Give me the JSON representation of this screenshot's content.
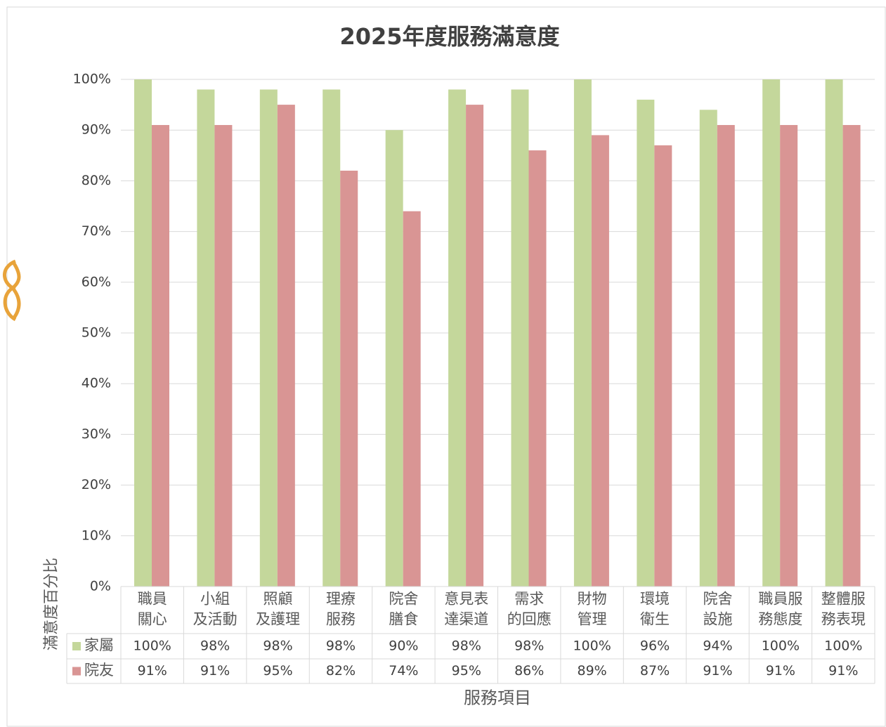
{
  "chart_data": {
    "type": "bar",
    "title": "2025年度服務滿意度",
    "y_label": "滿意度百分比",
    "x_label": "服務項目",
    "categories": [
      [
        "職員",
        "關心"
      ],
      [
        "小組",
        "及活動"
      ],
      [
        "照顧",
        "及護理"
      ],
      [
        "理療",
        "服務"
      ],
      [
        "院舍",
        "膳食"
      ],
      [
        "意見表",
        "達渠道"
      ],
      [
        "需求",
        "的回應"
      ],
      [
        "財物",
        "管理"
      ],
      [
        "環境",
        "衛生"
      ],
      [
        "院舍",
        "設施"
      ],
      [
        "職員服",
        "務態度"
      ],
      [
        "整體服",
        "務表現"
      ]
    ],
    "series": [
      {
        "name": "家屬",
        "color": "#c4d79b",
        "values": [
          100,
          98,
          98,
          98,
          90,
          98,
          98,
          100,
          96,
          94,
          100,
          100
        ],
        "value_labels": [
          "100%",
          "98%",
          "98%",
          "98%",
          "90%",
          "98%",
          "98%",
          "100%",
          "96%",
          "94%",
          "100%",
          "100%"
        ]
      },
      {
        "name": "院友",
        "color": "#d99594",
        "values": [
          91,
          91,
          95,
          82,
          74,
          95,
          86,
          89,
          87,
          91,
          91,
          91
        ],
        "value_labels": [
          "91%",
          "91%",
          "95%",
          "82%",
          "74%",
          "95%",
          "86%",
          "89%",
          "87%",
          "91%",
          "91%",
          "91%"
        ]
      }
    ],
    "ylim": [
      0,
      100
    ],
    "yticks": [
      {
        "value": 0,
        "label": "0%"
      },
      {
        "value": 10,
        "label": "10%"
      },
      {
        "value": 20,
        "label": "20%"
      },
      {
        "value": 30,
        "label": "30%"
      },
      {
        "value": 40,
        "label": "40%"
      },
      {
        "value": 50,
        "label": "50%"
      },
      {
        "value": 60,
        "label": "60%"
      },
      {
        "value": 70,
        "label": "70%"
      },
      {
        "value": 80,
        "label": "80%"
      },
      {
        "value": 90,
        "label": "90%"
      },
      {
        "value": 100,
        "label": "100%"
      }
    ],
    "grid": true
  }
}
